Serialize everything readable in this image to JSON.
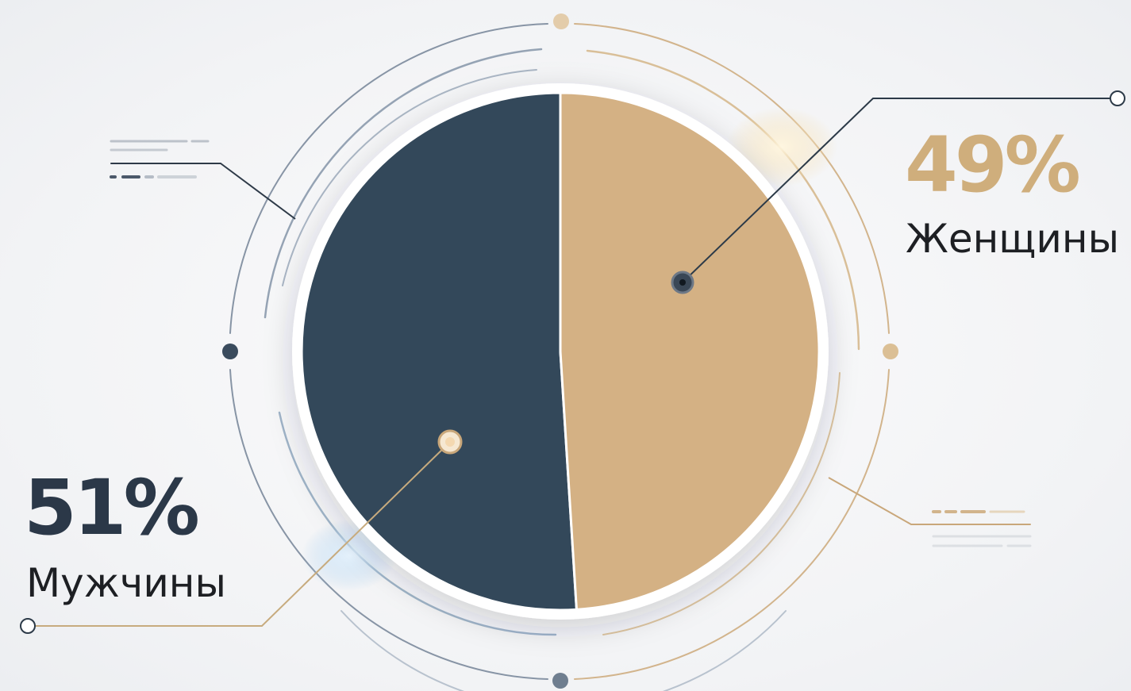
{
  "chart_data": {
    "type": "pie",
    "categories": [
      "Мужчины",
      "Женщины"
    ],
    "values": [
      51,
      49
    ],
    "labels": {
      "men": {
        "percent": "51%",
        "name": "Мужчины"
      },
      "women": {
        "percent": "49%",
        "name": "Женщины"
      }
    },
    "colors": {
      "men": "#33485a",
      "women": "#d4b184"
    },
    "legend": "none"
  }
}
